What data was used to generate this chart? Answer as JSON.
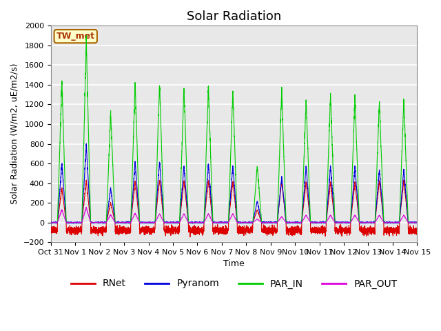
{
  "title": "Solar Radiation",
  "ylabel": "Solar Radiation (W/m2, uE/m2/s)",
  "xlabel": "Time",
  "ylim": [
    -200,
    2000
  ],
  "yticks": [
    -200,
    0,
    200,
    400,
    600,
    800,
    1000,
    1200,
    1400,
    1600,
    1800,
    2000
  ],
  "annotation": "TW_met",
  "annotation_color": "#aa3300",
  "annotation_bg": "#ffffcc",
  "annotation_border": "#aa6600",
  "colors": {
    "RNet": "#dd0000",
    "Pyranom": "#0000dd",
    "PAR_IN": "#00cc00",
    "PAR_OUT": "#dd00dd"
  },
  "background_color": "#e8e8e8",
  "grid_color": "#ffffff",
  "title_fontsize": 13,
  "label_fontsize": 9,
  "tick_fontsize": 8,
  "day_peaks_PAR_IN": [
    1440,
    1850,
    1120,
    1420,
    1430,
    1380,
    1400,
    1350,
    580,
    1350,
    1240,
    1300,
    1290,
    1240,
    1250,
    0
  ],
  "day_peaks_Pyranom": [
    600,
    780,
    350,
    620,
    630,
    580,
    600,
    580,
    220,
    460,
    570,
    570,
    570,
    540,
    540,
    0
  ],
  "day_peaks_RNet": [
    350,
    420,
    200,
    420,
    440,
    430,
    430,
    420,
    130,
    430,
    410,
    410,
    410,
    430,
    430,
    0
  ],
  "day_peaks_PAR_OUT": [
    130,
    150,
    80,
    95,
    90,
    90,
    90,
    90,
    35,
    60,
    75,
    75,
    75,
    75,
    75,
    0
  ],
  "night_rnet": -80,
  "night_rnet_noise": 20
}
